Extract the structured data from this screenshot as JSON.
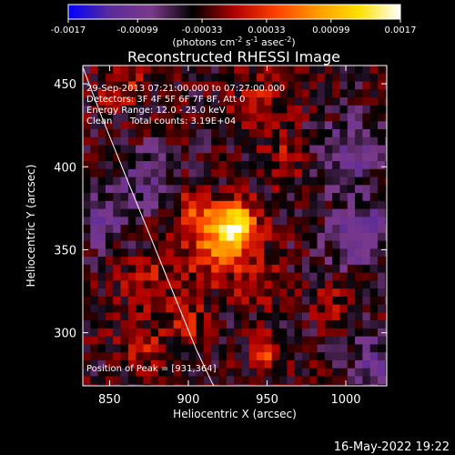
{
  "chart_data": {
    "type": "heatmap",
    "title": "Reconstructed RHESSI Image",
    "xlabel": "Heliocentric X (arcsec)",
    "ylabel": "Heliocentric Y (arcsec)",
    "xlim": [
      833,
      1026
    ],
    "ylim": [
      268,
      461
    ],
    "x_ticks": [
      850,
      900,
      950,
      1000
    ],
    "y_ticks": [
      300,
      350,
      400,
      450
    ],
    "colorbar": {
      "range": [
        -0.0017,
        0.0017
      ],
      "tick_values": [
        -0.0017,
        -0.00099,
        -0.00033,
        0.00033,
        0.00099,
        0.0017
      ],
      "tick_labels": [
        "-0.0017",
        "-0.00099",
        "-0.00033",
        "0.00033",
        "0.00099",
        "0.0017"
      ],
      "unit_text": "(photons cm",
      "unit_sup1": "-2",
      "unit_mid": " s",
      "unit_sup2": "-1",
      "unit_mid2": " asec",
      "unit_sup3": "-2",
      "unit_end": ")",
      "colors": [
        "#0000ff",
        "#5a2b9a",
        "#7b3a8a",
        "#000000",
        "#b00000",
        "#ff4000",
        "#ff9a00",
        "#ffe000",
        "#ffffff"
      ]
    },
    "annotations": {
      "time_range": "29-Sep-2013 07:21:00.000 to 07:27:00.000",
      "detectors": "Detectors: 3F 4F 5F 6F 7F 8F, Att 0",
      "energy_range": "Energy Range: 12.0 - 25.0 keV",
      "algorithm": "Clean",
      "total_counts": "Total counts: 3.19E+04",
      "peak_position": "Position of Peak = [931,364]"
    },
    "peak": {
      "x": 931,
      "y": 364
    },
    "limb_curve": {
      "x": [
        831,
        845,
        860,
        875,
        890,
        905,
        915,
        920
      ],
      "y": [
        465,
        430,
        395,
        360,
        325,
        290,
        270,
        262
      ]
    },
    "sources": [
      {
        "x": 931,
        "y": 364,
        "amplitude": 0.0017,
        "width": 9
      },
      {
        "x": 918,
        "y": 352,
        "amplitude": 0.0009,
        "width": 14
      },
      {
        "x": 905,
        "y": 372,
        "amplitude": 0.0006,
        "width": 10
      },
      {
        "x": 875,
        "y": 330,
        "amplitude": 0.00045,
        "width": 12
      },
      {
        "x": 945,
        "y": 330,
        "amplitude": 0.0005,
        "width": 10
      },
      {
        "x": 950,
        "y": 290,
        "amplitude": 0.0008,
        "width": 6
      },
      {
        "x": 870,
        "y": 290,
        "amplitude": 0.00045,
        "width": 10
      },
      {
        "x": 900,
        "y": 305,
        "amplitude": 0.00045,
        "width": 10
      },
      {
        "x": 990,
        "y": 318,
        "amplitude": 0.0004,
        "width": 8
      },
      {
        "x": 860,
        "y": 450,
        "amplitude": 0.0004,
        "width": 12
      },
      {
        "x": 945,
        "y": 440,
        "amplitude": 0.00035,
        "width": 14
      },
      {
        "x": 960,
        "y": 405,
        "amplitude": 0.00035,
        "width": 10
      },
      {
        "x": 1010,
        "y": 360,
        "amplitude": -0.0006,
        "width": 15
      },
      {
        "x": 1005,
        "y": 410,
        "amplitude": -0.0006,
        "width": 14
      },
      {
        "x": 875,
        "y": 395,
        "amplitude": -0.00055,
        "width": 12
      },
      {
        "x": 845,
        "y": 370,
        "amplitude": -0.0005,
        "width": 12
      },
      {
        "x": 1020,
        "y": 280,
        "amplitude": -0.0005,
        "width": 14
      }
    ]
  },
  "footer": {
    "timestamp": "16-May-2022 19:22"
  }
}
